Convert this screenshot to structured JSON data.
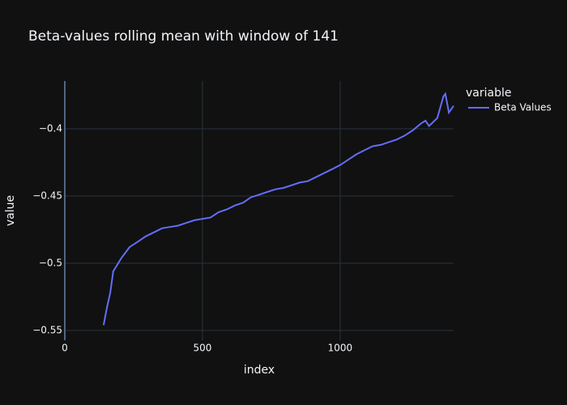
{
  "chart_data": {
    "type": "line",
    "title": "Beta-values rolling mean with window of 141",
    "x_label": "index",
    "y_label": "value",
    "legend_title": "variable",
    "series": [
      {
        "name": "Beta Values",
        "color": "#636efa",
        "x": [
          141,
          153,
          165,
          176,
          206,
          235,
          265,
          294,
          324,
          353,
          382,
          412,
          441,
          471,
          500,
          529,
          559,
          588,
          618,
          647,
          676,
          706,
          735,
          765,
          794,
          824,
          853,
          882,
          912,
          941,
          971,
          1000,
          1030,
          1059,
          1088,
          1118,
          1147,
          1176,
          1206,
          1235,
          1265,
          1294,
          1310,
          1323,
          1353,
          1375,
          1382,
          1395,
          1412
        ],
        "values": [
          -0.546,
          -0.533,
          -0.522,
          -0.506,
          -0.496,
          -0.488,
          -0.484,
          -0.48,
          -0.477,
          -0.474,
          -0.473,
          -0.472,
          -0.47,
          -0.468,
          -0.467,
          -0.466,
          -0.462,
          -0.46,
          -0.457,
          -0.455,
          -0.451,
          -0.449,
          -0.447,
          -0.445,
          -0.444,
          -0.442,
          -0.44,
          -0.439,
          -0.436,
          -0.433,
          -0.43,
          -0.427,
          -0.423,
          -0.419,
          -0.416,
          -0.413,
          -0.412,
          -0.41,
          -0.408,
          -0.405,
          -0.401,
          -0.396,
          -0.394,
          -0.398,
          -0.392,
          -0.376,
          -0.374,
          -0.388,
          -0.383
        ]
      }
    ],
    "xlim": [
      0,
      1412
    ],
    "xticks": [
      0,
      500,
      1000
    ],
    "ylim": [
      -0.5572,
      -0.3645
    ],
    "yticks": [
      {
        "value": -0.4,
        "label": "−0.4"
      },
      {
        "value": -0.45,
        "label": "−0.45"
      },
      {
        "value": -0.5,
        "label": "−0.5"
      },
      {
        "value": -0.55,
        "label": "−0.55"
      }
    ],
    "grid": true
  }
}
